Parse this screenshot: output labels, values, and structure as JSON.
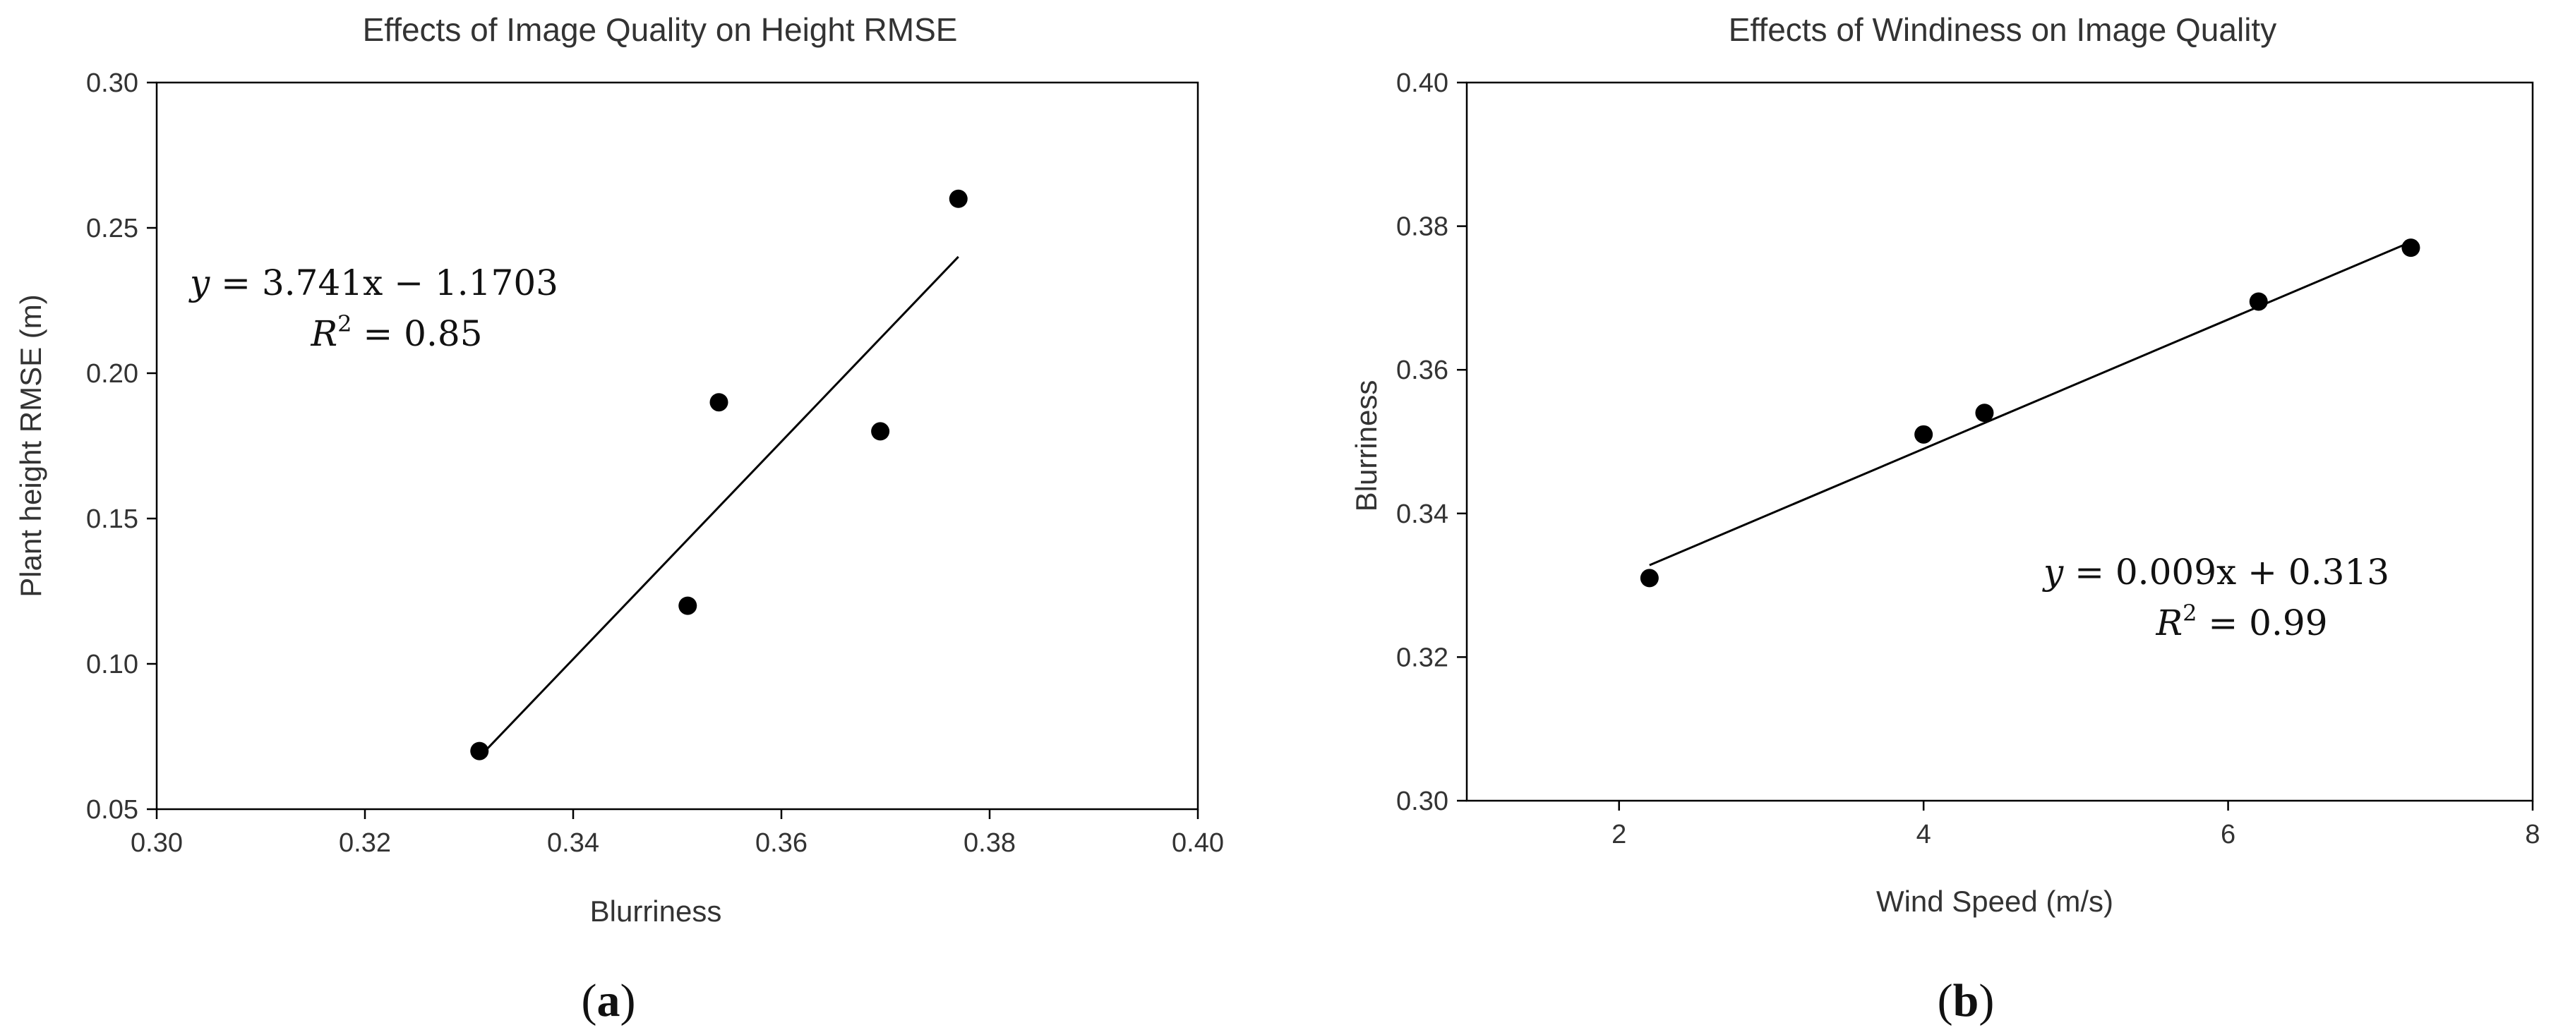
{
  "chart_data": [
    {
      "type": "scatter",
      "panel_label": "a",
      "title": "Effects of Image Quality on Height RMSE",
      "xlabel": "Blurriness",
      "ylabel": "Plant height RMSE (m)",
      "xlim": [
        0.3,
        0.4
      ],
      "ylim": [
        0.05,
        0.3
      ],
      "xticks": [
        0.3,
        0.32,
        0.34,
        0.36,
        0.38,
        0.4
      ],
      "yticks": [
        0.05,
        0.1,
        0.15,
        0.2,
        0.25,
        0.3
      ],
      "tick_decimals": 2,
      "grid": false,
      "points": [
        {
          "x": 0.331,
          "y": 0.07
        },
        {
          "x": 0.351,
          "y": 0.12
        },
        {
          "x": 0.354,
          "y": 0.19
        },
        {
          "x": 0.3695,
          "y": 0.18
        },
        {
          "x": 0.377,
          "y": 0.26
        }
      ],
      "fit": {
        "slope": 3.741,
        "intercept": -1.1703,
        "x_range": [
          0.331,
          0.377
        ]
      },
      "equation": {
        "lhs": "y",
        "rhs": "3.741x − 1.1703",
        "r2_label": "R",
        "r2_exp": "2",
        "r2_value": "= 0.85"
      }
    },
    {
      "type": "scatter",
      "panel_label": "b",
      "title": "Effects of Windiness on Image Quality",
      "xlabel": "Wind Speed (m/s)",
      "ylabel": "Blurriness",
      "xlim": [
        1,
        8
      ],
      "ylim": [
        0.3,
        0.4
      ],
      "xticks": [
        2,
        4,
        6,
        8
      ],
      "yticks": [
        0.3,
        0.32,
        0.34,
        0.36,
        0.38,
        0.4
      ],
      "tick_decimals": 2,
      "x_tick_decimals": 0,
      "grid": false,
      "points": [
        {
          "x": 2.2,
          "y": 0.331
        },
        {
          "x": 4.0,
          "y": 0.351
        },
        {
          "x": 4.4,
          "y": 0.354
        },
        {
          "x": 6.2,
          "y": 0.3695
        },
        {
          "x": 7.2,
          "y": 0.377
        }
      ],
      "fit": {
        "slope": 0.009,
        "intercept": 0.313,
        "x_range": [
          2.2,
          7.2
        ]
      },
      "equation": {
        "lhs": "y",
        "rhs": "0.009x + 0.313",
        "r2_label": "R",
        "r2_exp": "2",
        "r2_value": "= 0.99"
      }
    }
  ]
}
